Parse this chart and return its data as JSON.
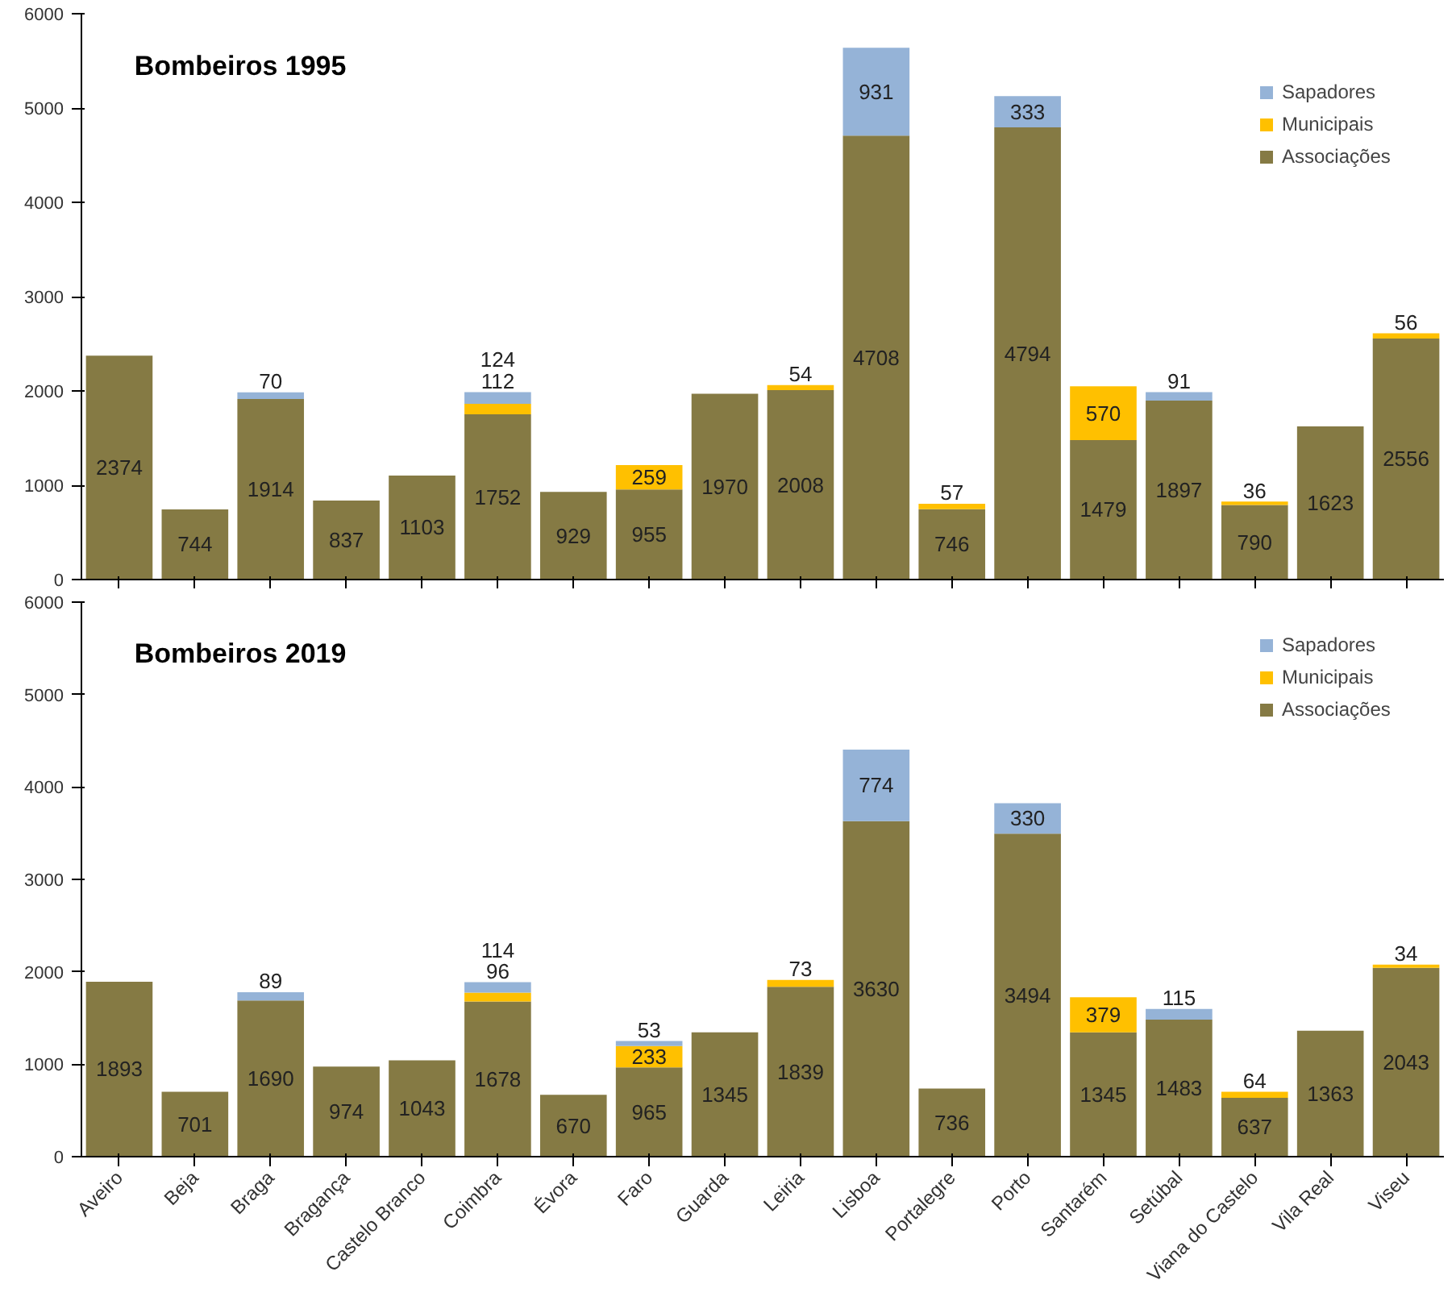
{
  "chart_data": [
    {
      "type": "bar",
      "title": "Bombeiros 1995",
      "stacked": true,
      "legend": "right",
      "tick_labels": "y",
      "grid": false,
      "categories": [
        null,
        null,
        null,
        null,
        null,
        null,
        null,
        null,
        null,
        null,
        null,
        null,
        null,
        null,
        null,
        null,
        null,
        null
      ],
      "ylim": [
        0,
        6000
      ],
      "yticks": [
        0,
        1000,
        2000,
        3000,
        4000,
        5000,
        6000
      ],
      "data_labels": true,
      "series": [
        {
          "name": "Associações",
          "color": "#857a44",
          "values": [
            2374,
            744,
            1914,
            837,
            1103,
            1752,
            929,
            955,
            1970,
            2008,
            4708,
            746,
            4794,
            1479,
            1897,
            790,
            1623,
            2556
          ]
        },
        {
          "name": "Municipais",
          "color": "#ffc000",
          "values": [
            null,
            null,
            null,
            null,
            null,
            112,
            null,
            259,
            null,
            54,
            null,
            57,
            null,
            570,
            null,
            36,
            null,
            56
          ]
        },
        {
          "name": "Sapadores",
          "color": "#95b3d7",
          "values": [
            null,
            null,
            70,
            null,
            null,
            124,
            null,
            null,
            null,
            null,
            931,
            null,
            333,
            null,
            91,
            null,
            null,
            null
          ]
        }
      ]
    },
    {
      "type": "bar",
      "title": "Bombeiros 2019",
      "stacked": true,
      "legend": "right",
      "grid": false,
      "categories": [
        "Aveiro",
        "Beja",
        "Braga",
        "Bragança",
        "Castelo Branco",
        "Coimbra",
        "Évora",
        "Faro",
        "Guarda",
        "Leiria",
        "Lisboa",
        "Portalegre",
        "Porto",
        "Santarém",
        "Setúbal",
        "Viana do Castelo",
        "Vila Real",
        "Viseu"
      ],
      "ylim": [
        0,
        6000
      ],
      "yticks": [
        0,
        1000,
        2000,
        3000,
        4000,
        5000,
        6000
      ],
      "data_labels": true,
      "series": [
        {
          "name": "Associações",
          "color": "#857a44",
          "values": [
            1893,
            701,
            1690,
            974,
            1043,
            1678,
            670,
            965,
            1345,
            1839,
            3630,
            736,
            3494,
            1345,
            1483,
            637,
            1363,
            2043
          ]
        },
        {
          "name": "Municipais",
          "color": "#ffc000",
          "values": [
            null,
            null,
            null,
            null,
            null,
            96,
            null,
            233,
            null,
            73,
            null,
            null,
            null,
            379,
            null,
            64,
            null,
            34
          ]
        },
        {
          "name": "Sapadores",
          "color": "#95b3d7",
          "values": [
            null,
            null,
            89,
            null,
            null,
            114,
            null,
            53,
            null,
            null,
            774,
            null,
            330,
            null,
            115,
            null,
            null,
            null
          ]
        }
      ]
    }
  ]
}
